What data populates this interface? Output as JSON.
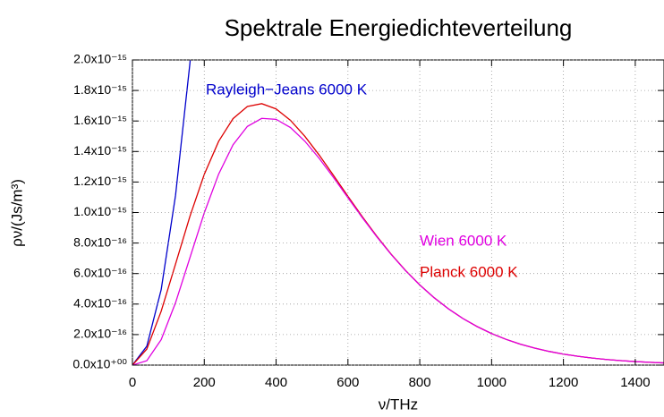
{
  "chart_data": {
    "type": "line",
    "title": "Spektrale Energiedichteverteilung",
    "x_label": "ν/THz",
    "y_label": "ρν/(Js/m³)",
    "xlim": [
      0,
      1480
    ],
    "ylim": [
      0,
      2e-15
    ],
    "xticks": [
      0,
      200,
      400,
      600,
      800,
      1000,
      1200,
      1400
    ],
    "yticks": [
      {
        "value": 0,
        "label": "0.0x10⁺⁰⁰"
      },
      {
        "value": 2e-16,
        "label": "2.0x10⁻¹⁶"
      },
      {
        "value": 4e-16,
        "label": "4.0x10⁻¹⁶"
      },
      {
        "value": 6e-16,
        "label": "6.0x10⁻¹⁶"
      },
      {
        "value": 8e-16,
        "label": "8.0x10⁻¹⁶"
      },
      {
        "value": 1e-15,
        "label": "1.0x10⁻¹⁵"
      },
      {
        "value": 1.2e-15,
        "label": "1.2x10⁻¹⁵"
      },
      {
        "value": 1.4e-15,
        "label": "1.4x10⁻¹⁵"
      },
      {
        "value": 1.6e-15,
        "label": "1.6x10⁻¹⁵"
      },
      {
        "value": 1.8e-15,
        "label": "1.8x10⁻¹⁵"
      },
      {
        "value": 2e-15,
        "label": "2.0x10⁻¹⁵"
      }
    ],
    "grid": true,
    "series": [
      {
        "name": "Rayleigh−Jeans 6000 K",
        "color": "#0000cc",
        "x": [
          0,
          40,
          80,
          120,
          160,
          170
        ],
        "values": [
          0,
          1.2358e-16,
          4.943e-16,
          1.1123e-15,
          1.9773e-15,
          2.2322e-15
        ]
      },
      {
        "name": "Planck 6000 K",
        "color": "#dd0000",
        "x": [
          0,
          40,
          80,
          120,
          160,
          200,
          240,
          280,
          320,
          360,
          400,
          440,
          480,
          520,
          560,
          600,
          640,
          680,
          720,
          760,
          800,
          840,
          880,
          920,
          960,
          1000,
          1040,
          1080,
          1120,
          1160,
          1200,
          1240,
          1280,
          1320,
          1360,
          1400,
          1440,
          1480
        ],
        "values": [
          0,
          1.0485e-16,
          3.528e-16,
          6.624e-16,
          9.745e-16,
          1.25e-15,
          1.4667e-15,
          1.6153e-15,
          1.6953e-15,
          1.7135e-15,
          1.679e-15,
          1.6043e-15,
          1.4997e-15,
          1.3765e-15,
          1.2427e-15,
          1.1061e-15,
          9.726e-16,
          8.457e-16,
          7.28e-16,
          6.212e-16,
          5.257e-16,
          4.417e-16,
          3.686e-16,
          3.057e-16,
          2.522e-16,
          2.0693e-16,
          1.6892e-16,
          1.3735e-16,
          1.1122e-16,
          8.971e-17,
          7.211e-17,
          5.777e-17,
          4.613e-17,
          3.674e-17,
          2.917e-17,
          2.31e-17,
          1.8255e-17,
          1.439e-17
        ]
      },
      {
        "name": "Wien 6000 K",
        "color": "#e000e0",
        "x": [
          0,
          40,
          80,
          120,
          160,
          200,
          240,
          280,
          320,
          360,
          400,
          440,
          480,
          520,
          560,
          600,
          640,
          680,
          720,
          760,
          800,
          840,
          880,
          920,
          960,
          1000,
          1040,
          1080,
          1120,
          1160,
          1200,
          1240,
          1280,
          1320,
          1360,
          1400,
          1440,
          1480
        ],
        "values": [
          0,
          2.872e-17,
          1.668e-16,
          4.089e-16,
          7.036e-16,
          9.978e-16,
          1.2518e-15,
          1.4435e-15,
          1.5644e-15,
          1.6172e-15,
          1.6108e-15,
          1.5569e-15,
          1.4676e-15,
          1.3549e-15,
          1.2286e-15,
          1.0971e-15,
          9.667e-16,
          8.421e-16,
          7.258e-16,
          6.197e-16,
          5.248e-16,
          4.411e-16,
          3.683e-16,
          3.055e-16,
          2.521e-16,
          2.0686e-16,
          1.6892e-16,
          1.3735e-16,
          1.1122e-16,
          8.971e-17,
          7.211e-17,
          5.777e-17,
          4.613e-17,
          3.674e-17,
          2.917e-17,
          2.31e-17,
          1.8255e-17,
          1.439e-17
        ]
      }
    ]
  }
}
